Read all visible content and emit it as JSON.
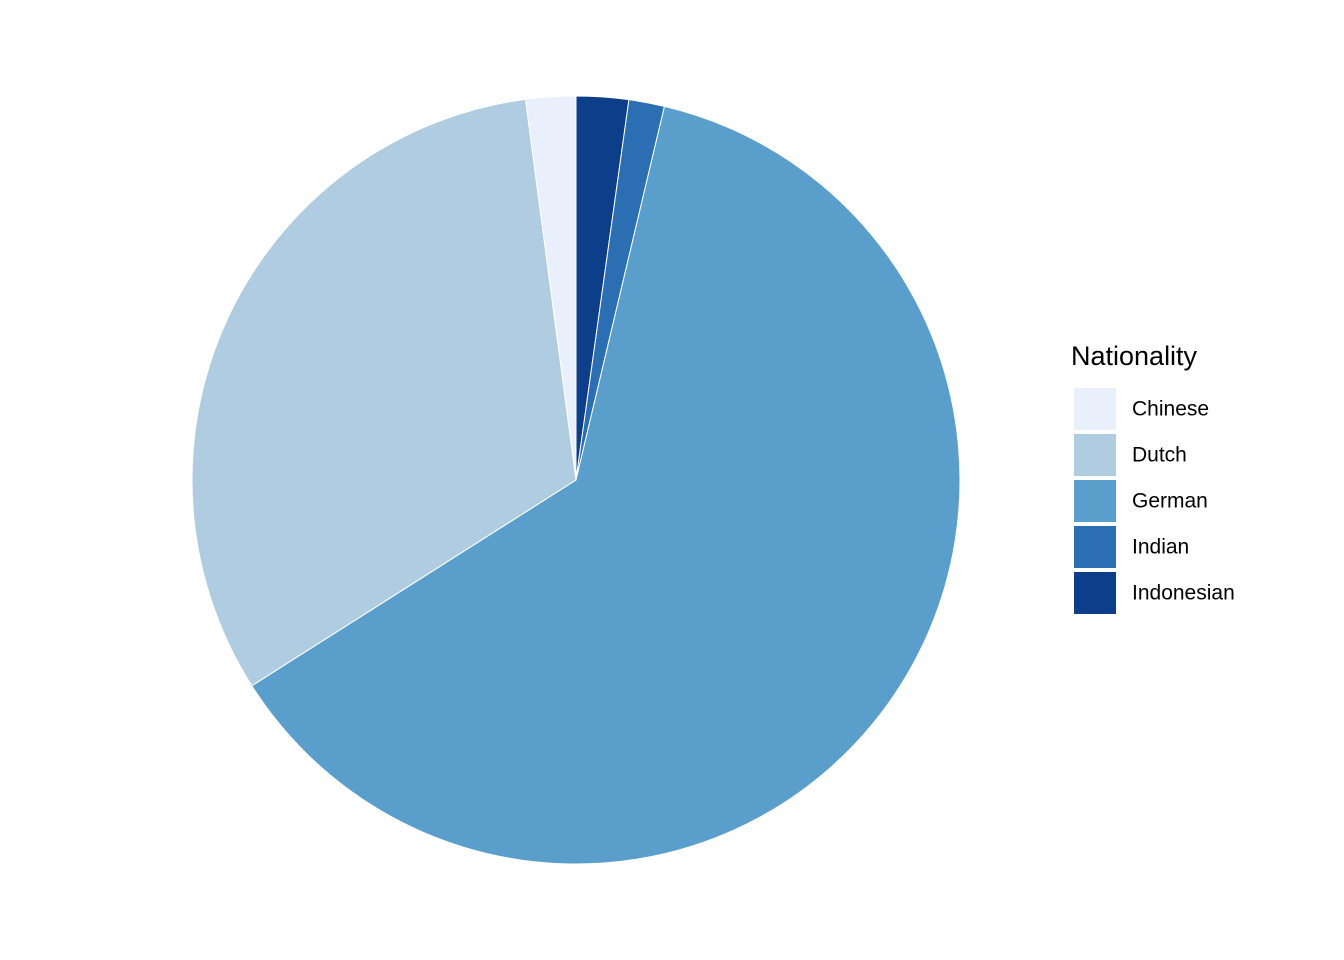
{
  "chart_data": {
    "type": "pie",
    "legend_title": "Nationality",
    "categories": [
      "Chinese",
      "Dutch",
      "German",
      "Indian",
      "Indonesian"
    ],
    "values": [
      2.1,
      31.9,
      62.3,
      1.5,
      2.2
    ],
    "colors": [
      "#e9f0fc",
      "#afcce1",
      "#5a9ecc",
      "#2b6fb2",
      "#0c3e8a"
    ],
    "legend_position": "right"
  }
}
